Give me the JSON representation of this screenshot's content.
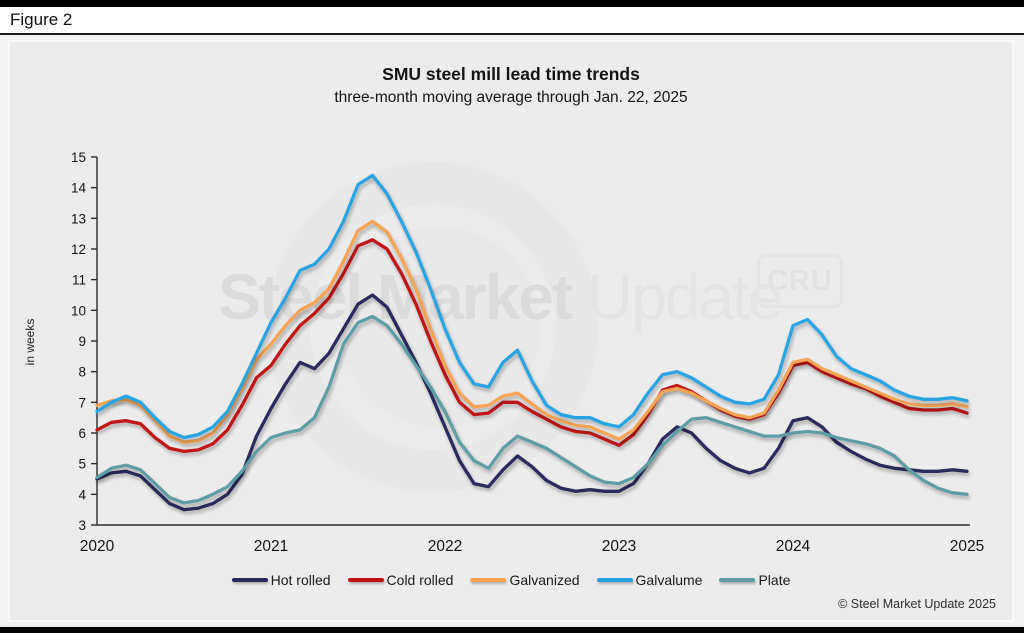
{
  "page": {
    "figure_label": "Figure 2",
    "copyright": "© Steel Market Update 2025",
    "watermark": {
      "brand_bold": "Steel Market",
      "brand_light": " Update",
      "cru_logo": "CRU"
    }
  },
  "chart_data": {
    "type": "line",
    "title": "SMU steel mill lead time trends",
    "subtitle": "three-month moving average through Jan. 22, 2025",
    "ylabel": "in weeks",
    "ylim": [
      3,
      15
    ],
    "ytick_step": 1,
    "grid": false,
    "legend_position": "bottom",
    "x_unit": "monthly from Jan 2020 through Jan 2025",
    "xtick_labels": [
      "2020",
      "2021",
      "2022",
      "2023",
      "2024",
      "2025"
    ],
    "series": [
      {
        "name": "Hot rolled",
        "color": "#2b2a5c",
        "values": [
          4.5,
          4.7,
          4.75,
          4.6,
          4.15,
          3.7,
          3.5,
          3.55,
          3.7,
          4.0,
          4.65,
          5.9,
          6.8,
          7.6,
          8.3,
          8.1,
          8.6,
          9.4,
          10.2,
          10.5,
          10.1,
          9.2,
          8.3,
          7.3,
          6.2,
          5.1,
          4.35,
          4.25,
          4.8,
          5.25,
          4.9,
          4.45,
          4.2,
          4.1,
          4.15,
          4.1,
          4.1,
          4.35,
          5.0,
          5.8,
          6.2,
          6.0,
          5.5,
          5.1,
          4.85,
          4.7,
          4.85,
          5.5,
          6.4,
          6.5,
          6.2,
          5.7,
          5.4,
          5.15,
          4.95,
          4.85,
          4.8,
          4.75,
          4.75,
          4.8,
          4.75
        ]
      },
      {
        "name": "Cold rolled",
        "color": "#c01215",
        "values": [
          6.1,
          6.35,
          6.4,
          6.3,
          5.85,
          5.5,
          5.4,
          5.45,
          5.65,
          6.1,
          6.9,
          7.8,
          8.2,
          8.9,
          9.5,
          9.9,
          10.4,
          11.2,
          12.1,
          12.3,
          12.0,
          11.2,
          10.2,
          9.0,
          7.9,
          7.0,
          6.6,
          6.65,
          7.0,
          7.0,
          6.7,
          6.45,
          6.2,
          6.05,
          6.0,
          5.8,
          5.6,
          5.95,
          6.6,
          7.4,
          7.55,
          7.35,
          7.05,
          6.75,
          6.55,
          6.45,
          6.6,
          7.3,
          8.2,
          8.3,
          8.0,
          7.8,
          7.6,
          7.45,
          7.2,
          7.0,
          6.8,
          6.75,
          6.75,
          6.8,
          6.65
        ]
      },
      {
        "name": "Galvanized",
        "color": "#f5a455",
        "values": [
          6.9,
          7.05,
          7.1,
          6.9,
          6.4,
          5.9,
          5.7,
          5.75,
          6.0,
          6.6,
          7.45,
          8.4,
          8.9,
          9.5,
          10.0,
          10.25,
          10.7,
          11.6,
          12.6,
          12.9,
          12.55,
          11.7,
          10.7,
          9.4,
          8.2,
          7.3,
          6.85,
          6.9,
          7.2,
          7.3,
          6.95,
          6.6,
          6.4,
          6.25,
          6.2,
          6.0,
          5.8,
          6.1,
          6.7,
          7.35,
          7.45,
          7.3,
          7.05,
          6.8,
          6.6,
          6.5,
          6.65,
          7.4,
          8.3,
          8.4,
          8.1,
          7.9,
          7.7,
          7.5,
          7.3,
          7.1,
          6.95,
          6.9,
          6.9,
          6.95,
          6.85
        ]
      },
      {
        "name": "Galvalume",
        "color": "#29a4e0",
        "values": [
          6.7,
          7.0,
          7.2,
          7.0,
          6.5,
          6.05,
          5.85,
          5.95,
          6.2,
          6.7,
          7.6,
          8.6,
          9.6,
          10.4,
          11.3,
          11.5,
          12.0,
          12.9,
          14.1,
          14.4,
          13.8,
          12.9,
          11.9,
          10.7,
          9.4,
          8.3,
          7.6,
          7.5,
          8.3,
          8.7,
          7.7,
          6.9,
          6.6,
          6.5,
          6.5,
          6.3,
          6.2,
          6.6,
          7.3,
          7.9,
          8.0,
          7.8,
          7.5,
          7.2,
          7.0,
          6.95,
          7.1,
          7.9,
          9.5,
          9.7,
          9.2,
          8.5,
          8.1,
          7.9,
          7.7,
          7.4,
          7.2,
          7.1,
          7.1,
          7.15,
          7.05
        ]
      },
      {
        "name": "Plate",
        "color": "#5e9da5",
        "values": [
          4.55,
          4.85,
          4.95,
          4.8,
          4.35,
          3.9,
          3.72,
          3.8,
          4.0,
          4.25,
          4.75,
          5.4,
          5.85,
          6.0,
          6.1,
          6.5,
          7.5,
          8.9,
          9.6,
          9.8,
          9.5,
          8.9,
          8.2,
          7.5,
          6.7,
          5.7,
          5.1,
          4.85,
          5.5,
          5.9,
          5.7,
          5.5,
          5.2,
          4.9,
          4.6,
          4.4,
          4.35,
          4.55,
          5.0,
          5.6,
          6.05,
          6.45,
          6.5,
          6.35,
          6.2,
          6.05,
          5.9,
          5.9,
          6.0,
          6.05,
          6.0,
          5.85,
          5.75,
          5.65,
          5.5,
          5.25,
          4.8,
          4.45,
          4.2,
          4.05,
          4.0
        ]
      }
    ]
  }
}
